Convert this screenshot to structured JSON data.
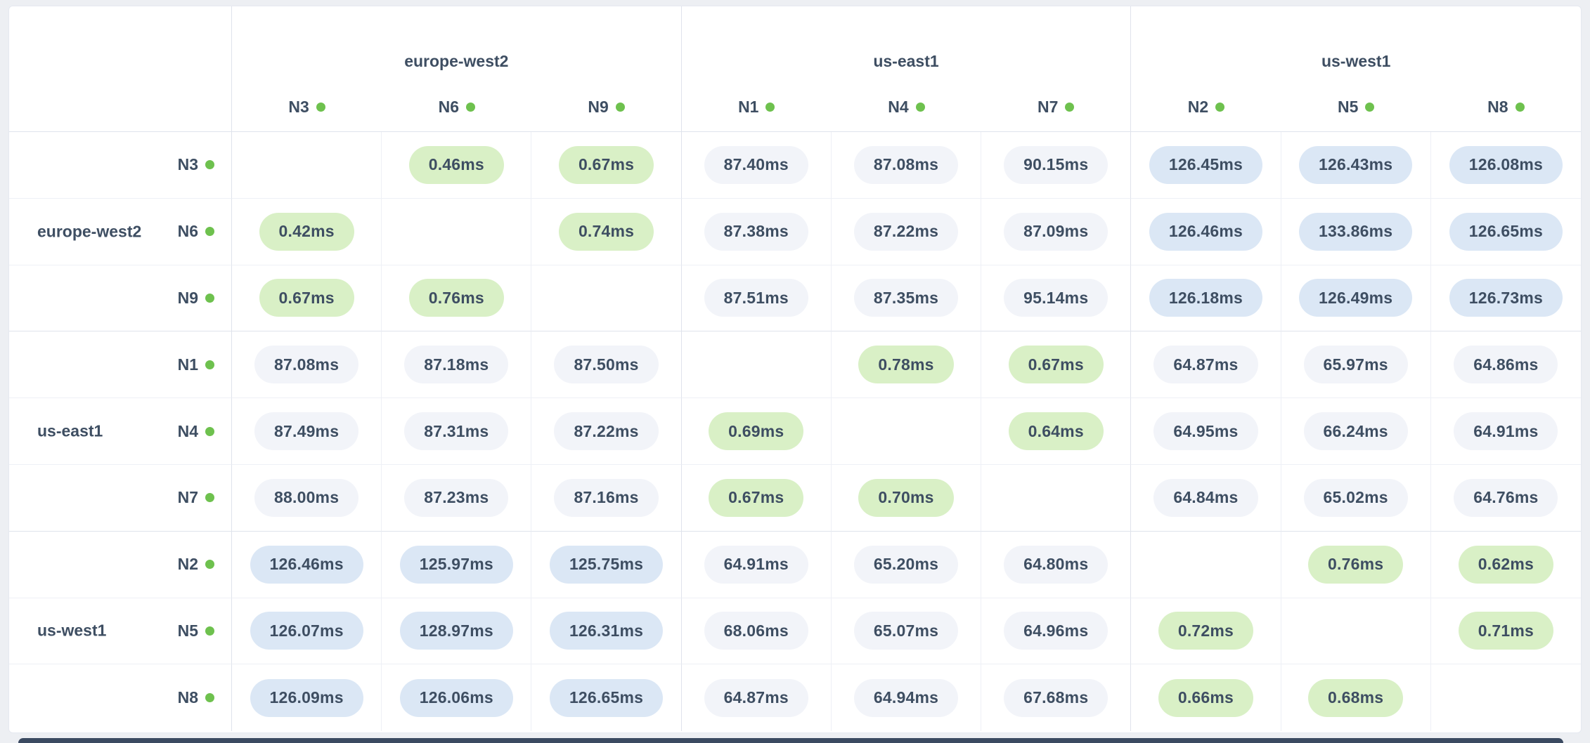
{
  "matrix": {
    "unit": "ms",
    "regions": [
      {
        "name": "europe-west2",
        "nodes": [
          "N3",
          "N6",
          "N9"
        ]
      },
      {
        "name": "us-east1",
        "nodes": [
          "N1",
          "N4",
          "N7"
        ]
      },
      {
        "name": "us-west1",
        "nodes": [
          "N2",
          "N5",
          "N8"
        ]
      }
    ],
    "columns": [
      "N3",
      "N6",
      "N9",
      "N1",
      "N4",
      "N7",
      "N2",
      "N5",
      "N8"
    ],
    "rows": [
      {
        "node": "N3",
        "region": "europe-west2",
        "values": [
          "",
          "0.46ms",
          "0.67ms",
          "87.40ms",
          "87.08ms",
          "90.15ms",
          "126.45ms",
          "126.43ms",
          "126.08ms"
        ]
      },
      {
        "node": "N6",
        "region": "europe-west2",
        "values": [
          "0.42ms",
          "",
          "0.74ms",
          "87.38ms",
          "87.22ms",
          "87.09ms",
          "126.46ms",
          "133.86ms",
          "126.65ms"
        ]
      },
      {
        "node": "N9",
        "region": "europe-west2",
        "values": [
          "0.67ms",
          "0.76ms",
          "",
          "87.51ms",
          "87.35ms",
          "95.14ms",
          "126.18ms",
          "126.49ms",
          "126.73ms"
        ]
      },
      {
        "node": "N1",
        "region": "us-east1",
        "values": [
          "87.08ms",
          "87.18ms",
          "87.50ms",
          "",
          "0.78ms",
          "0.67ms",
          "64.87ms",
          "65.97ms",
          "64.86ms"
        ]
      },
      {
        "node": "N4",
        "region": "us-east1",
        "values": [
          "87.49ms",
          "87.31ms",
          "87.22ms",
          "0.69ms",
          "",
          "0.64ms",
          "64.95ms",
          "66.24ms",
          "64.91ms"
        ]
      },
      {
        "node": "N7",
        "region": "us-east1",
        "values": [
          "88.00ms",
          "87.23ms",
          "87.16ms",
          "0.67ms",
          "0.70ms",
          "",
          "64.84ms",
          "65.02ms",
          "64.76ms"
        ]
      },
      {
        "node": "N2",
        "region": "us-west1",
        "values": [
          "126.46ms",
          "125.97ms",
          "125.75ms",
          "64.91ms",
          "65.20ms",
          "64.80ms",
          "",
          "0.76ms",
          "0.62ms"
        ]
      },
      {
        "node": "N5",
        "region": "us-west1",
        "values": [
          "126.07ms",
          "128.97ms",
          "126.31ms",
          "68.06ms",
          "65.07ms",
          "64.96ms",
          "0.72ms",
          "",
          "0.71ms"
        ]
      },
      {
        "node": "N8",
        "region": "us-west1",
        "values": [
          "126.09ms",
          "126.06ms",
          "126.65ms",
          "64.87ms",
          "64.94ms",
          "67.68ms",
          "0.66ms",
          "0.68ms",
          ""
        ]
      }
    ],
    "thresholds": {
      "low_below": 1,
      "high_at_or_above": 100
    }
  },
  "colors": {
    "text": "#3e4e62",
    "dot": "#6ec14e",
    "pill_low": "#d9f0c6",
    "pill_mid": "#f2f4f9",
    "pill_high": "#dbe7f5",
    "page_background": "#edeff3",
    "card_background": "#ffffff",
    "card_border": "#e5e8f0",
    "line_strong": "#dfe3ec",
    "line_light": "#eef0f6",
    "bottom_bar": "#3b4a61"
  }
}
